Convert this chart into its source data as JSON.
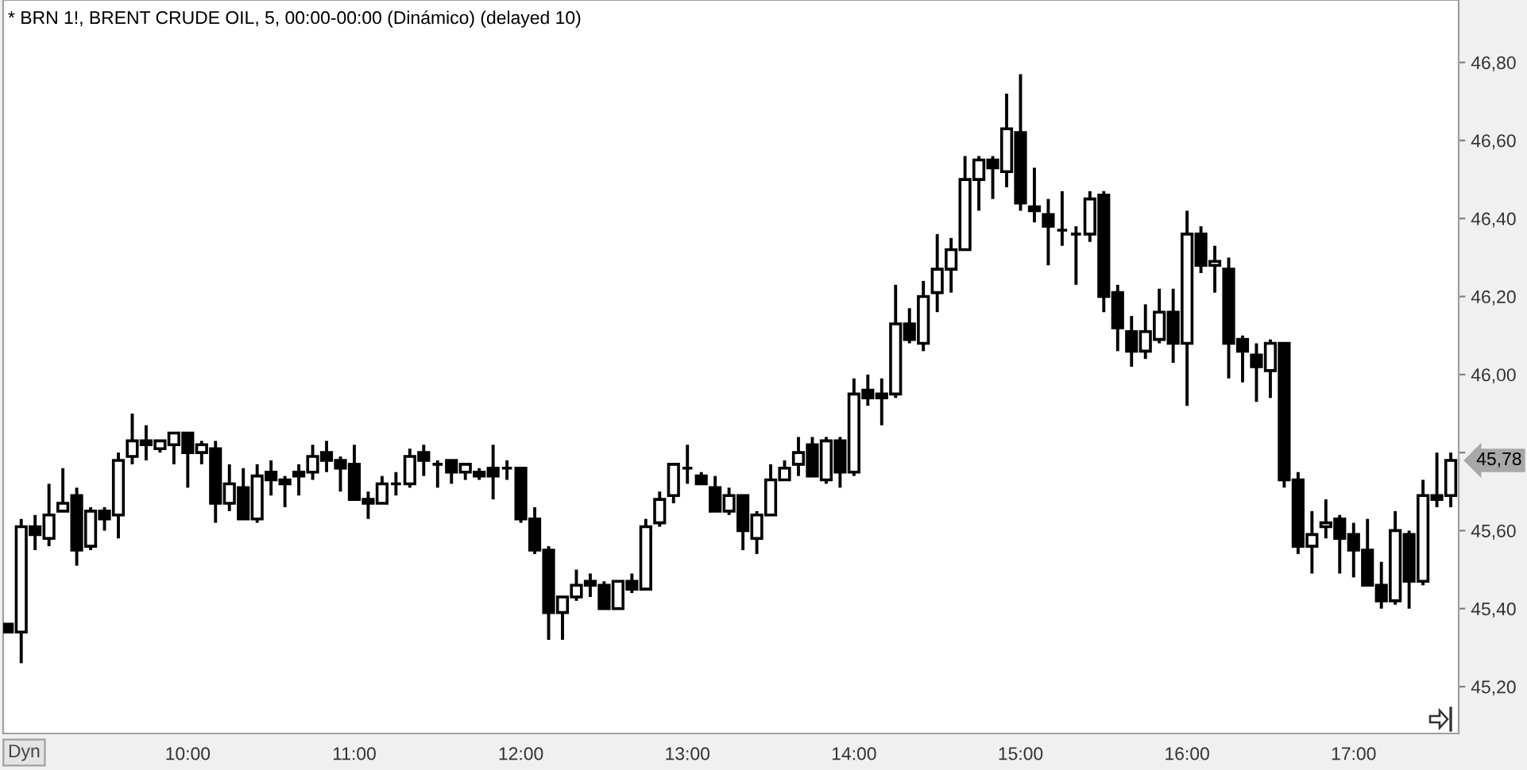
{
  "chart_data": {
    "type": "candlestick",
    "title": "* BRN 1!, BRENT CRUDE OIL, 5, 00:00-00:00 (Dinámico) (delayed 10)",
    "categories": [
      null,
      null,
      null,
      null,
      null,
      null,
      null,
      null,
      null,
      null,
      null,
      null,
      null,
      "10:00",
      null,
      null,
      null,
      null,
      null,
      null,
      null,
      null,
      null,
      null,
      null,
      "11:00",
      null,
      null,
      null,
      null,
      null,
      null,
      null,
      null,
      null,
      null,
      null,
      "12:00",
      null,
      null,
      null,
      null,
      null,
      null,
      null,
      null,
      null,
      null,
      null,
      "13:00",
      null,
      null,
      null,
      null,
      null,
      null,
      null,
      null,
      null,
      null,
      null,
      "14:00",
      null,
      null,
      null,
      null,
      null,
      null,
      null,
      null,
      null,
      null,
      null,
      "15:00",
      null,
      null,
      null,
      null,
      null,
      null,
      null,
      null,
      null,
      null,
      null,
      "16:00",
      null,
      null,
      null,
      null,
      null,
      null,
      null,
      null,
      null,
      null,
      null,
      "17:00",
      null,
      null,
      null,
      null,
      null,
      null,
      null
    ],
    "ohlc": [
      [
        45.36,
        45.36,
        45.34,
        45.34
      ],
      [
        45.34,
        45.63,
        45.26,
        45.61
      ],
      [
        45.61,
        45.64,
        45.55,
        45.59
      ],
      [
        45.58,
        45.72,
        45.56,
        45.64
      ],
      [
        45.65,
        45.76,
        45.65,
        45.67
      ],
      [
        45.69,
        45.71,
        45.51,
        45.55
      ],
      [
        45.56,
        45.66,
        45.55,
        45.65
      ],
      [
        45.65,
        45.66,
        45.6,
        45.63
      ],
      [
        45.64,
        45.8,
        45.58,
        45.78
      ],
      [
        45.79,
        45.9,
        45.77,
        45.83
      ],
      [
        45.83,
        45.87,
        45.78,
        45.82
      ],
      [
        45.81,
        45.83,
        45.8,
        45.83
      ],
      [
        45.82,
        45.85,
        45.77,
        45.85
      ],
      [
        45.85,
        45.85,
        45.71,
        45.8
      ],
      [
        45.8,
        45.83,
        45.77,
        45.82
      ],
      [
        45.81,
        45.83,
        45.62,
        45.67
      ],
      [
        45.67,
        45.77,
        45.65,
        45.72
      ],
      [
        45.71,
        45.76,
        45.63,
        45.63
      ],
      [
        45.63,
        45.77,
        45.62,
        45.74
      ],
      [
        45.75,
        45.78,
        45.69,
        45.73
      ],
      [
        45.73,
        45.74,
        45.66,
        45.72
      ],
      [
        45.75,
        45.77,
        45.69,
        45.74
      ],
      [
        45.75,
        45.82,
        45.73,
        45.79
      ],
      [
        45.8,
        45.83,
        45.75,
        45.78
      ],
      [
        45.78,
        45.79,
        45.7,
        45.76
      ],
      [
        45.77,
        45.82,
        45.68,
        45.68
      ],
      [
        45.68,
        45.7,
        45.63,
        45.67
      ],
      [
        45.67,
        45.74,
        45.67,
        45.72
      ],
      [
        45.72,
        45.75,
        45.69,
        45.72
      ],
      [
        45.72,
        45.81,
        45.71,
        45.79
      ],
      [
        45.8,
        45.82,
        45.74,
        45.78
      ],
      [
        45.77,
        45.78,
        45.71,
        45.77
      ],
      [
        45.78,
        45.78,
        45.72,
        45.75
      ],
      [
        45.75,
        45.77,
        45.73,
        45.77
      ],
      [
        45.75,
        45.76,
        45.73,
        45.74
      ],
      [
        45.76,
        45.82,
        45.68,
        45.74
      ],
      [
        45.76,
        45.78,
        45.73,
        45.76
      ],
      [
        45.76,
        45.76,
        45.62,
        45.63
      ],
      [
        45.63,
        45.66,
        45.54,
        45.55
      ],
      [
        45.55,
        45.56,
        45.32,
        45.39
      ],
      [
        45.39,
        45.43,
        45.32,
        45.43
      ],
      [
        45.43,
        45.5,
        45.42,
        45.46
      ],
      [
        45.47,
        45.49,
        45.43,
        45.46
      ],
      [
        45.46,
        45.47,
        45.4,
        45.4
      ],
      [
        45.4,
        45.47,
        45.4,
        45.47
      ],
      [
        45.47,
        45.49,
        45.44,
        45.45
      ],
      [
        45.45,
        45.63,
        45.45,
        45.61
      ],
      [
        45.62,
        45.7,
        45.61,
        45.68
      ],
      [
        45.69,
        45.77,
        45.67,
        45.77
      ],
      [
        45.76,
        45.82,
        45.72,
        45.76
      ],
      [
        45.74,
        45.75,
        45.72,
        45.72
      ],
      [
        45.71,
        45.74,
        45.65,
        45.65
      ],
      [
        45.65,
        45.71,
        45.64,
        45.69
      ],
      [
        45.69,
        45.69,
        45.55,
        45.6
      ],
      [
        45.58,
        45.65,
        45.54,
        45.64
      ],
      [
        45.64,
        45.77,
        45.64,
        45.73
      ],
      [
        45.73,
        45.78,
        45.73,
        45.76
      ],
      [
        45.77,
        45.84,
        45.74,
        45.8
      ],
      [
        45.82,
        45.84,
        45.74,
        45.74
      ],
      [
        45.73,
        45.84,
        45.72,
        45.83
      ],
      [
        45.83,
        45.84,
        45.71,
        45.75
      ],
      [
        45.75,
        45.99,
        45.74,
        45.95
      ],
      [
        45.96,
        46.0,
        45.92,
        45.94
      ],
      [
        45.95,
        45.99,
        45.87,
        45.94
      ],
      [
        45.95,
        46.23,
        45.94,
        46.13
      ],
      [
        46.13,
        46.17,
        46.08,
        46.09
      ],
      [
        46.08,
        46.24,
        46.06,
        46.2
      ],
      [
        46.21,
        46.36,
        46.16,
        46.27
      ],
      [
        46.27,
        46.35,
        46.21,
        46.32
      ],
      [
        46.32,
        46.56,
        46.32,
        46.5
      ],
      [
        46.5,
        46.56,
        46.42,
        46.55
      ],
      [
        46.55,
        46.56,
        46.45,
        46.53
      ],
      [
        46.52,
        46.72,
        46.48,
        46.63
      ],
      [
        46.62,
        46.77,
        46.42,
        46.44
      ],
      [
        46.43,
        46.53,
        46.39,
        46.42
      ],
      [
        46.41,
        46.45,
        46.28,
        46.38
      ],
      [
        46.37,
        46.47,
        46.33,
        46.37
      ],
      [
        46.36,
        46.38,
        46.23,
        46.36
      ],
      [
        46.36,
        46.47,
        46.34,
        46.45
      ],
      [
        46.46,
        46.47,
        46.16,
        46.2
      ],
      [
        46.21,
        46.23,
        46.06,
        46.12
      ],
      [
        46.11,
        46.15,
        46.02,
        46.06
      ],
      [
        46.06,
        46.18,
        46.04,
        46.11
      ],
      [
        46.09,
        46.22,
        46.08,
        46.16
      ],
      [
        46.16,
        46.22,
        46.03,
        46.08
      ],
      [
        46.08,
        46.42,
        45.92,
        46.36
      ],
      [
        46.36,
        46.38,
        46.26,
        46.28
      ],
      [
        46.28,
        46.33,
        46.21,
        46.29
      ],
      [
        46.27,
        46.3,
        45.99,
        46.08
      ],
      [
        46.09,
        46.1,
        45.98,
        46.06
      ],
      [
        46.05,
        46.08,
        45.93,
        46.02
      ],
      [
        46.01,
        46.09,
        45.94,
        46.08
      ],
      [
        46.08,
        46.08,
        45.71,
        45.73
      ],
      [
        45.73,
        45.75,
        45.54,
        45.56
      ],
      [
        45.56,
        45.65,
        45.49,
        45.59
      ],
      [
        45.61,
        45.68,
        45.58,
        45.62
      ],
      [
        45.63,
        45.64,
        45.49,
        45.58
      ],
      [
        45.59,
        45.62,
        45.48,
        45.55
      ],
      [
        45.55,
        45.63,
        45.46,
        45.46
      ],
      [
        45.46,
        45.52,
        45.4,
        45.42
      ],
      [
        45.42,
        45.65,
        45.41,
        45.6
      ],
      [
        45.59,
        45.6,
        45.4,
        45.47
      ],
      [
        45.47,
        45.73,
        45.46,
        45.69
      ],
      [
        45.69,
        45.8,
        45.66,
        45.68
      ],
      [
        45.69,
        45.8,
        45.66,
        45.78
      ]
    ],
    "color": "#000000",
    "ylim": [
      45.08,
      46.96
    ],
    "yticks": [
      {
        "value": 45.2,
        "label": "45,20"
      },
      {
        "value": 45.4,
        "label": "45,40"
      },
      {
        "value": 45.6,
        "label": "45,60"
      },
      {
        "value": 45.8,
        "label": null
      },
      {
        "value": 46.0,
        "label": "46,00"
      },
      {
        "value": 46.2,
        "label": "46,20"
      },
      {
        "value": 46.4,
        "label": "46,40"
      },
      {
        "value": 46.6,
        "label": "46,60"
      },
      {
        "value": 46.8,
        "label": "46,80"
      }
    ],
    "annotations": [
      "Dyn",
      "45,78"
    ]
  }
}
